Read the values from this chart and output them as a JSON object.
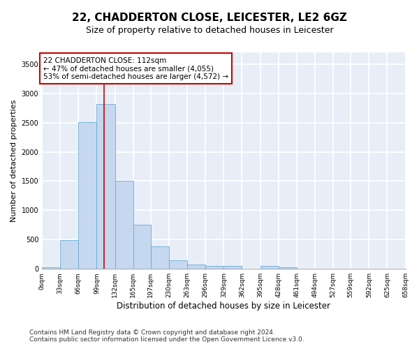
{
  "title1": "22, CHADDERTON CLOSE, LEICESTER, LE2 6GZ",
  "title2": "Size of property relative to detached houses in Leicester",
  "xlabel": "Distribution of detached houses by size in Leicester",
  "ylabel": "Number of detached properties",
  "footnote1": "Contains HM Land Registry data © Crown copyright and database right 2024.",
  "footnote2": "Contains public sector information licensed under the Open Government Licence v3.0.",
  "bar_edges": [
    0,
    33,
    66,
    99,
    132,
    165,
    197,
    230,
    263,
    296,
    329,
    362,
    395,
    428,
    461,
    494,
    527,
    559,
    592,
    625,
    658
  ],
  "bar_heights": [
    30,
    490,
    2510,
    2820,
    1510,
    750,
    385,
    140,
    75,
    55,
    55,
    0,
    55,
    25,
    0,
    0,
    0,
    0,
    0,
    0
  ],
  "bar_color": "#c5d8f0",
  "bar_edgecolor": "#6aaad4",
  "property_size": 112,
  "vline_color": "#cc0000",
  "annotation_text": "22 CHADDERTON CLOSE: 112sqm\n← 47% of detached houses are smaller (4,055)\n53% of semi-detached houses are larger (4,572) →",
  "annotation_box_color": "#cc0000",
  "ylim": [
    0,
    3700
  ],
  "xlim": [
    0,
    658
  ],
  "tick_labels": [
    "0sqm",
    "33sqm",
    "66sqm",
    "99sqm",
    "132sqm",
    "165sqm",
    "197sqm",
    "230sqm",
    "263sqm",
    "296sqm",
    "329sqm",
    "362sqm",
    "395sqm",
    "428sqm",
    "461sqm",
    "494sqm",
    "527sqm",
    "559sqm",
    "592sqm",
    "625sqm",
    "658sqm"
  ],
  "tick_positions": [
    0,
    33,
    66,
    99,
    132,
    165,
    197,
    230,
    263,
    296,
    329,
    362,
    395,
    428,
    461,
    494,
    527,
    559,
    592,
    625,
    658
  ],
  "background_color": "#e8eef8",
  "grid_color": "#ffffff",
  "title1_fontsize": 11,
  "title2_fontsize": 9,
  "axis_label_fontsize": 8,
  "tick_fontsize": 6.5,
  "footnote_fontsize": 6.5,
  "annotation_fontsize": 7.5
}
